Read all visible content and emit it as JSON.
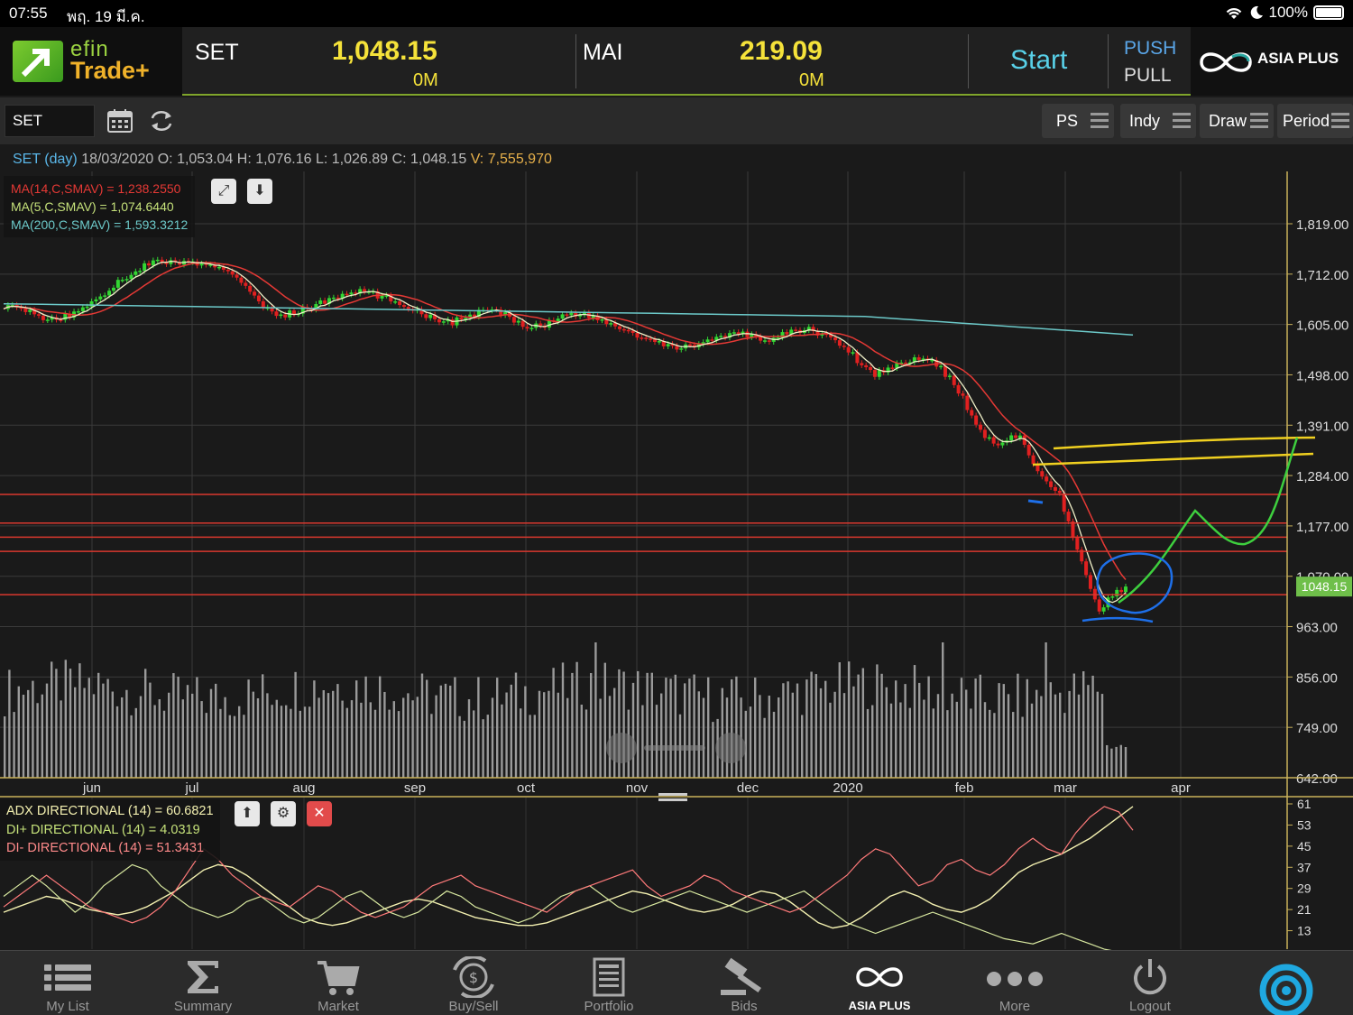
{
  "status_bar": {
    "time": "07:55",
    "date": "พฤ. 19 มี.ค.",
    "battery": "100%"
  },
  "header": {
    "logo_line1": "efin",
    "logo_line2": "Trade+",
    "set": {
      "name": "SET",
      "value": "1,048.15",
      "volume": "0M"
    },
    "mai": {
      "name": "MAI",
      "value": "219.09",
      "volume": "0M"
    },
    "start": "Start",
    "push": "PUSH",
    "pull": "PULL",
    "broker": "ASIA PLUS"
  },
  "toolbar": {
    "symbol": "SET",
    "buttons": {
      "ps": "PS",
      "indy": "Indy",
      "draw": "Draw",
      "period": "Period"
    }
  },
  "info": {
    "symbol_period": "SET (day)",
    "date": "18/03/2020",
    "open_label": "O:",
    "open": "1,053.04",
    "high_label": "H:",
    "high": "1,076.16",
    "low_label": "L:",
    "low": "1,026.89",
    "close_label": "C:",
    "close": "1,048.15",
    "volume_label": "V:",
    "volume": "7,555,970"
  },
  "ma_legend": [
    {
      "text": "MA(14,C,SMAV) = 1,238.2550",
      "color": "#e53935"
    },
    {
      "text": "MA(5,C,SMAV) = 1,074.6440",
      "color": "#c5e17a"
    },
    {
      "text": "MA(200,C,SMAV) = 1,593.3212",
      "color": "#6cc9c9"
    }
  ],
  "indicator_legend": [
    {
      "text": "ADX DIRECTIONAL (14) = 60.6821",
      "color": "#f3f0b0"
    },
    {
      "text": "DI+ DIRECTIONAL (14) = 4.0319",
      "color": "#c5e17a"
    },
    {
      "text": "DI- DIRECTIONAL (14) = 51.3431",
      "color": "#ff8a8a"
    }
  ],
  "last_price_tag": "1048.15",
  "chart_data": {
    "type": "candlestick",
    "title": "SET (day)",
    "y_ticks": [
      "1,819.00",
      "1,712.00",
      "1,605.00",
      "1,498.00",
      "1,391.00",
      "1,284.00",
      "1,177.00",
      "1,070.00",
      "963.00",
      "856.00",
      "749.00",
      "642.00"
    ],
    "x_ticks": [
      "jun",
      "jul",
      "aug",
      "sep",
      "oct",
      "nov",
      "dec",
      "2020",
      "feb",
      "mar",
      "apr"
    ],
    "ylim": [
      642,
      1819
    ],
    "close_approx": [
      1645,
      1640,
      1630,
      1620,
      1615,
      1625,
      1640,
      1660,
      1680,
      1700,
      1720,
      1735,
      1740,
      1735,
      1738,
      1730,
      1725,
      1720,
      1700,
      1660,
      1635,
      1625,
      1630,
      1640,
      1650,
      1660,
      1670,
      1675,
      1670,
      1660,
      1650,
      1640,
      1625,
      1615,
      1610,
      1620,
      1630,
      1635,
      1625,
      1610,
      1600,
      1605,
      1620,
      1630,
      1625,
      1615,
      1605,
      1595,
      1580,
      1570,
      1560,
      1555,
      1560,
      1570,
      1575,
      1580,
      1585,
      1578,
      1570,
      1585,
      1590,
      1595,
      1585,
      1570,
      1550,
      1520,
      1500,
      1510,
      1525,
      1535,
      1530,
      1510,
      1480,
      1430,
      1380,
      1350,
      1360,
      1370,
      1310,
      1265,
      1240,
      1150,
      1070,
      1000,
      1030,
      1048.15
    ],
    "reference_lines": [
      1244,
      1183,
      1153,
      1123,
      1031
    ],
    "support_resistance": [
      1330,
      1360
    ],
    "indicator_ticks": [
      "61",
      "53",
      "45",
      "37",
      "29",
      "21",
      "13"
    ],
    "indicator_ylim": [
      5,
      61
    ],
    "adx": [
      20,
      22,
      24,
      26,
      25,
      23,
      21,
      20,
      19,
      20,
      22,
      25,
      28,
      32,
      36,
      38,
      37,
      34,
      30,
      26,
      22,
      18,
      16,
      15,
      16,
      18,
      20,
      22,
      24,
      25,
      24,
      22,
      20,
      18,
      17,
      16,
      15,
      15,
      16,
      18,
      20,
      22,
      24,
      26,
      28,
      27,
      25,
      23,
      21,
      20,
      21,
      23,
      26,
      28,
      27,
      24,
      20,
      16,
      14,
      15,
      18,
      22,
      26,
      28,
      26,
      23,
      21,
      20,
      22,
      25,
      30,
      35,
      38,
      40,
      42,
      45,
      48,
      52,
      56,
      60
    ],
    "di_plus": [
      26,
      30,
      34,
      30,
      25,
      20,
      24,
      30,
      34,
      38,
      36,
      30,
      26,
      22,
      20,
      18,
      20,
      24,
      26,
      22,
      18,
      16,
      18,
      22,
      26,
      28,
      24,
      20,
      18,
      20,
      24,
      28,
      26,
      22,
      20,
      18,
      16,
      18,
      22,
      26,
      28,
      30,
      26,
      22,
      20,
      22,
      24,
      26,
      28,
      26,
      24,
      22,
      20,
      22,
      24,
      26,
      28,
      24,
      20,
      16,
      14,
      12,
      14,
      16,
      18,
      20,
      18,
      16,
      14,
      12,
      10,
      9,
      8,
      10,
      12,
      10,
      8,
      6,
      5,
      4
    ],
    "di_minus": [
      22,
      26,
      30,
      34,
      30,
      26,
      22,
      20,
      18,
      16,
      18,
      22,
      28,
      36,
      44,
      40,
      34,
      30,
      26,
      24,
      22,
      26,
      30,
      28,
      24,
      20,
      18,
      20,
      22,
      26,
      30,
      32,
      34,
      30,
      28,
      26,
      24,
      22,
      20,
      24,
      28,
      30,
      32,
      34,
      36,
      30,
      26,
      28,
      30,
      34,
      32,
      28,
      26,
      24,
      22,
      20,
      22,
      26,
      30,
      34,
      40,
      44,
      42,
      36,
      30,
      32,
      38,
      40,
      36,
      34,
      38,
      44,
      48,
      44,
      42,
      50,
      56,
      60,
      58,
      51
    ]
  },
  "navigation": [
    {
      "label": "My List",
      "icon": "list-icon"
    },
    {
      "label": "Summary",
      "icon": "sigma-icon"
    },
    {
      "label": "Market",
      "icon": "cart-icon"
    },
    {
      "label": "Buy/Sell",
      "icon": "buysell-icon"
    },
    {
      "label": "Portfolio",
      "icon": "portfolio-icon"
    },
    {
      "label": "Bids",
      "icon": "gavel-icon"
    },
    {
      "label": "ASIA PLUS",
      "icon": "asiaplus-icon"
    },
    {
      "label": "More",
      "icon": "more-icon"
    },
    {
      "label": "Logout",
      "icon": "power-icon"
    }
  ]
}
